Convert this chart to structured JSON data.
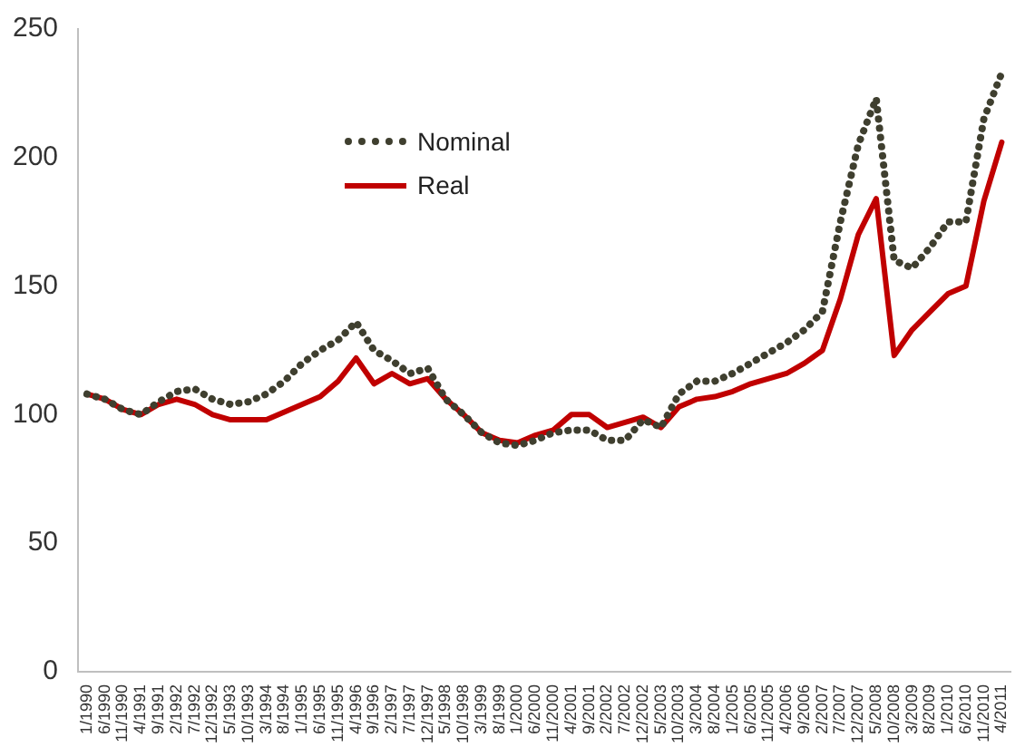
{
  "chart_data": {
    "type": "line",
    "categories": [
      "1/1990",
      "6/1990",
      "11/1990",
      "4/1991",
      "9/1991",
      "2/1992",
      "7/1992",
      "12/1992",
      "5/1993",
      "10/1993",
      "3/1994",
      "8/1994",
      "1/1995",
      "6/1995",
      "11/1995",
      "4/1996",
      "9/1996",
      "2/1997",
      "7/1997",
      "12/1997",
      "5/1998",
      "10/1998",
      "3/1999",
      "8/1999",
      "1/2000",
      "6/2000",
      "11/2000",
      "4/2001",
      "9/2001",
      "2/2002",
      "7/2002",
      "12/2002",
      "5/2003",
      "10/2003",
      "3/2004",
      "8/2004",
      "1/2005",
      "6/2005",
      "11/2005",
      "4/2006",
      "9/2006",
      "2/2007",
      "7/2007",
      "12/2007",
      "5/2008",
      "10/2008",
      "3/2009",
      "8/2009",
      "1/2010",
      "6/2010",
      "11/2010",
      "4/2011"
    ],
    "series": [
      {
        "name": "Nominal",
        "color": "#3f3f2f",
        "line_style": "dotted",
        "values": [
          108,
          106,
          102,
          100,
          105,
          109,
          110,
          106,
          104,
          105,
          108,
          113,
          120,
          125,
          129,
          136,
          125,
          121,
          116,
          118,
          106,
          100,
          93,
          89,
          88,
          90,
          93,
          94,
          94,
          90,
          90,
          98,
          95,
          108,
          113,
          113,
          116,
          120,
          124,
          128,
          133,
          140,
          175,
          205,
          223,
          160,
          157,
          165,
          175,
          175,
          215,
          233
        ]
      },
      {
        "name": "Real",
        "color": "#c00000",
        "line_style": "solid",
        "values": [
          108,
          106,
          102,
          100,
          104,
          106,
          104,
          100,
          98,
          98,
          98,
          101,
          104,
          107,
          113,
          122,
          112,
          116,
          112,
          114,
          106,
          100,
          93,
          90,
          89,
          92,
          94,
          100,
          100,
          95,
          97,
          99,
          95,
          103,
          106,
          107,
          109,
          112,
          114,
          116,
          120,
          125,
          145,
          170,
          184,
          123,
          133,
          140,
          147,
          150,
          183,
          206
        ]
      }
    ],
    "ylim": [
      0,
      250
    ],
    "yticks": [
      0,
      50,
      100,
      150,
      200,
      250
    ],
    "grid": false,
    "legend": "top left",
    "marker": "none"
  }
}
